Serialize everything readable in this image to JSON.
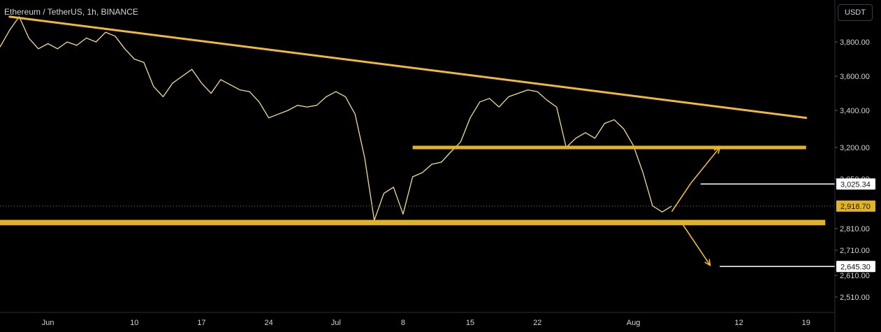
{
  "header": {
    "symbol_title": "Ethereum / TetherUS, 1h, BINANCE",
    "currency": "USDT"
  },
  "colors": {
    "background": "#000000",
    "price_line": "#f3dc96",
    "annotation": "#f0b93a",
    "annotation_band": "#e2b324",
    "target_line": "#ffffff",
    "axis_text": "#d1d4dc",
    "axis_line": "#2a2e39"
  },
  "chart_data": {
    "type": "line",
    "title": "Ethereum / TetherUS, 1h, BINANCE",
    "ylim": [
      2460,
      3980
    ],
    "yticks": [
      {
        "value": 3800,
        "label": "3,800.00"
      },
      {
        "value": 3600,
        "label": "3,600.00"
      },
      {
        "value": 3400,
        "label": "3,400.00"
      },
      {
        "value": 3200,
        "label": "3,200.00"
      },
      {
        "value": 3050,
        "label": "3,050.00"
      },
      {
        "value": 2810,
        "label": "2,810.00"
      },
      {
        "value": 2710,
        "label": "2,710.00"
      },
      {
        "value": 2610,
        "label": "2,610.00"
      },
      {
        "value": 2510,
        "label": "2,510.00"
      }
    ],
    "xlim": [
      "2024-05-27",
      "2024-08-22"
    ],
    "xticks": [
      {
        "date": "2024-06-01",
        "label": "Jun"
      },
      {
        "date": "2024-06-10",
        "label": "10"
      },
      {
        "date": "2024-06-17",
        "label": "17"
      },
      {
        "date": "2024-06-24",
        "label": "24"
      },
      {
        "date": "2024-07-01",
        "label": "Jul"
      },
      {
        "date": "2024-07-08",
        "label": "8"
      },
      {
        "date": "2024-07-15",
        "label": "15"
      },
      {
        "date": "2024-07-22",
        "label": "22"
      },
      {
        "date": "2024-08-01",
        "label": "Aug"
      },
      {
        "date": "2024-08-12",
        "label": "12"
      },
      {
        "date": "2024-08-19",
        "label": "19"
      }
    ],
    "series": [
      {
        "values": [
          [
            "2024-05-27",
            3770
          ],
          [
            "2024-05-28",
            3860
          ],
          [
            "2024-05-29",
            3930
          ],
          [
            "2024-05-30",
            3820
          ],
          [
            "2024-05-31",
            3760
          ],
          [
            "2024-06-01",
            3790
          ],
          [
            "2024-06-02",
            3760
          ],
          [
            "2024-06-03",
            3800
          ],
          [
            "2024-06-04",
            3780
          ],
          [
            "2024-06-05",
            3820
          ],
          [
            "2024-06-06",
            3800
          ],
          [
            "2024-06-07",
            3850
          ],
          [
            "2024-06-08",
            3830
          ],
          [
            "2024-06-09",
            3760
          ],
          [
            "2024-06-10",
            3700
          ],
          [
            "2024-06-11",
            3680
          ],
          [
            "2024-06-12",
            3540
          ],
          [
            "2024-06-13",
            3480
          ],
          [
            "2024-06-14",
            3560
          ],
          [
            "2024-06-15",
            3600
          ],
          [
            "2024-06-16",
            3640
          ],
          [
            "2024-06-17",
            3560
          ],
          [
            "2024-06-18",
            3500
          ],
          [
            "2024-06-19",
            3580
          ],
          [
            "2024-06-20",
            3550
          ],
          [
            "2024-06-21",
            3520
          ],
          [
            "2024-06-22",
            3510
          ],
          [
            "2024-06-23",
            3450
          ],
          [
            "2024-06-24",
            3360
          ],
          [
            "2024-06-25",
            3380
          ],
          [
            "2024-06-26",
            3400
          ],
          [
            "2024-06-27",
            3430
          ],
          [
            "2024-06-28",
            3420
          ],
          [
            "2024-06-29",
            3430
          ],
          [
            "2024-06-30",
            3480
          ],
          [
            "2024-07-01",
            3510
          ],
          [
            "2024-07-02",
            3480
          ],
          [
            "2024-07-03",
            3380
          ],
          [
            "2024-07-04",
            3150
          ],
          [
            "2024-07-05",
            2850
          ],
          [
            "2024-07-06",
            2980
          ],
          [
            "2024-07-07",
            3010
          ],
          [
            "2024-07-08",
            2880
          ],
          [
            "2024-07-09",
            3060
          ],
          [
            "2024-07-10",
            3080
          ],
          [
            "2024-07-11",
            3120
          ],
          [
            "2024-07-12",
            3130
          ],
          [
            "2024-07-13",
            3180
          ],
          [
            "2024-07-14",
            3230
          ],
          [
            "2024-07-15",
            3360
          ],
          [
            "2024-07-16",
            3450
          ],
          [
            "2024-07-17",
            3470
          ],
          [
            "2024-07-18",
            3420
          ],
          [
            "2024-07-19",
            3480
          ],
          [
            "2024-07-20",
            3500
          ],
          [
            "2024-07-21",
            3520
          ],
          [
            "2024-07-22",
            3510
          ],
          [
            "2024-07-23",
            3460
          ],
          [
            "2024-07-24",
            3420
          ],
          [
            "2024-07-25",
            3200
          ],
          [
            "2024-07-26",
            3250
          ],
          [
            "2024-07-27",
            3280
          ],
          [
            "2024-07-28",
            3250
          ],
          [
            "2024-07-29",
            3330
          ],
          [
            "2024-07-30",
            3350
          ],
          [
            "2024-07-31",
            3300
          ],
          [
            "2024-08-01",
            3210
          ],
          [
            "2024-08-02",
            3080
          ],
          [
            "2024-08-03",
            2920
          ],
          [
            "2024-08-04",
            2890
          ],
          [
            "2024-08-05",
            2919
          ]
        ]
      }
    ],
    "annotations": {
      "trendline": {
        "start": [
          "2024-05-28",
          3930
        ],
        "end": [
          "2024-08-19",
          3360
        ]
      },
      "resistance_band": {
        "from_date": "2024-07-09",
        "to_date": "2024-08-19",
        "price": 3200
      },
      "support_band": {
        "from_date": "2024-05-27",
        "to_date": "2024-08-21",
        "low": 2826,
        "high": 2852
      },
      "arrow_up_1": {
        "start": [
          "2024-08-05",
          2892
        ],
        "end": [
          "2024-08-07",
          3030
        ]
      },
      "arrow_up_2": {
        "start": [
          "2024-08-07",
          3030
        ],
        "end": [
          "2024-08-10",
          3200
        ]
      },
      "arrow_down": {
        "start": [
          "2024-08-06",
          2840
        ],
        "end": [
          "2024-08-09",
          2650
        ]
      },
      "target_up": {
        "from_date": "2024-08-08",
        "price": 3025.34,
        "label": "3,025.34"
      },
      "target_down": {
        "from_date": "2024-08-10",
        "price": 2645.3,
        "label": "2,645.30"
      },
      "current_price": {
        "price": 2918.7,
        "label": "2,918.70"
      }
    }
  }
}
